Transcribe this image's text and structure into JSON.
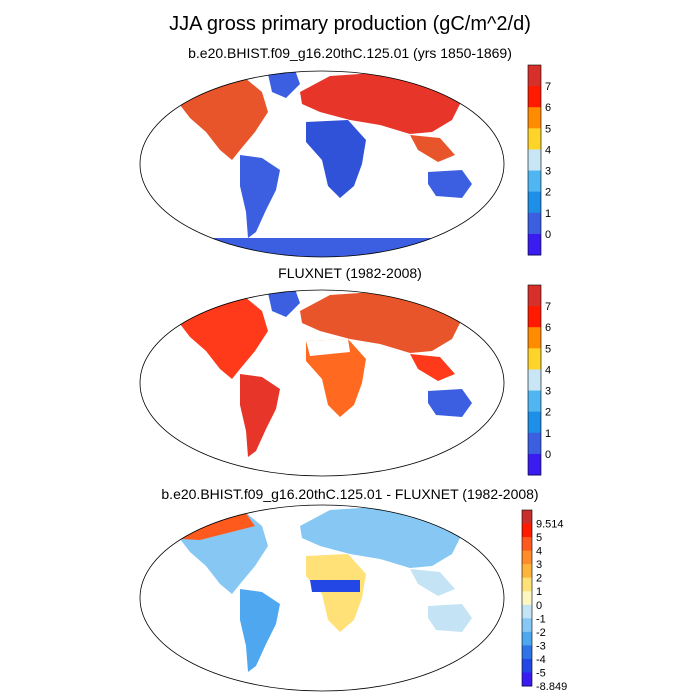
{
  "title": "JJA gross primary production (gC/m^2/d)",
  "panels": [
    {
      "subtitle": "b.e20.BHIST.f09_g16.20thC.125.01 (yrs 1850-1869)",
      "colorbar": {
        "labels": [
          "7",
          "6",
          "5",
          "4",
          "3",
          "2",
          "1",
          "0"
        ],
        "colors": [
          "#d7302b",
          "#ff1a00",
          "#ff8c00",
          "#ffd42a",
          "#c8e6f5",
          "#4fb6f2",
          "#1e8fe6",
          "#3b5fe0",
          "#3a1cf0"
        ]
      }
    },
    {
      "subtitle": "FLUXNET (1982-2008)",
      "colorbar": {
        "labels": [
          "7",
          "6",
          "5",
          "4",
          "3",
          "2",
          "1",
          "0"
        ],
        "colors": [
          "#d7302b",
          "#ff1a00",
          "#ff8c00",
          "#ffd42a",
          "#c8e6f5",
          "#4fb6f2",
          "#1e8fe6",
          "#3b5fe0",
          "#3a1cf0"
        ]
      }
    },
    {
      "subtitle": "b.e20.BHIST.f09_g16.20thC.125.01 - FLUXNET (1982-2008)",
      "colorbar": {
        "labels": [
          "9.514",
          "5",
          "4",
          "3",
          "2",
          "1",
          "0",
          "-1",
          "-2",
          "-3",
          "-4",
          "-5",
          "-8.849"
        ],
        "colors": [
          "#c9302b",
          "#ff1a00",
          "#ff5a1e",
          "#ff8c2a",
          "#ffb43c",
          "#ffe178",
          "#fff7c0",
          "#c4e4f5",
          "#86c8f3",
          "#4fa8ef",
          "#2e74e6",
          "#2347e4",
          "#3a1cf0"
        ]
      }
    }
  ]
}
